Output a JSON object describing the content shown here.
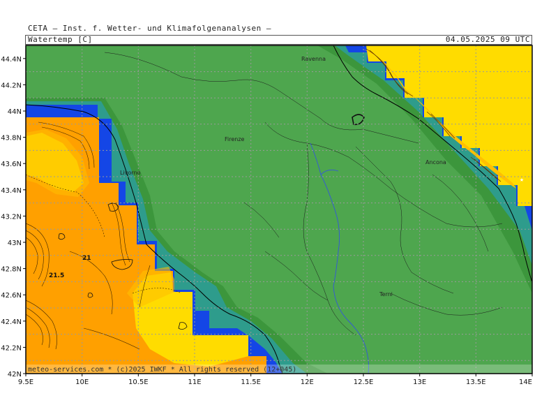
{
  "header": {
    "organization": "CETA — Inst. f. Wetter- und Klimafolgenanalysen —",
    "variable": "Watertemp [C]",
    "timestamp": "04.05.2025 09 UTC"
  },
  "axes": {
    "lon_ticks": [
      "9.5E",
      "10E",
      "10.5E",
      "11E",
      "11.5E",
      "12E",
      "12.5E",
      "13E",
      "13.5E",
      "14E"
    ],
    "lat_ticks": [
      "42N",
      "42.2N",
      "42.4N",
      "42.6N",
      "42.8N",
      "43N",
      "43.2N",
      "43.4N",
      "43.6N",
      "43.8N",
      "44N",
      "44.2N",
      "44.4N"
    ],
    "lon_range": [
      9.5,
      14.0
    ],
    "lat_range": [
      42.0,
      44.5
    ],
    "grid": "dotted"
  },
  "cities": [
    "Ravenna",
    "Firenze",
    "Livorno",
    "Ancona",
    "Terni"
  ],
  "contour_labels": [
    "21",
    "21.5"
  ],
  "copyright": "meteo-services.com * (c)2025 IWKF * All rights reserved (12+045)",
  "colors": {
    "land": "#4ea64e",
    "coast_dark": "#3c963c",
    "coast_mid": "#2e9c8c",
    "coast_blue": "#1446e6",
    "sea_warm": "#ffa000",
    "sea_mid": "#ffc000",
    "sea_cool": "#ffdc00"
  }
}
